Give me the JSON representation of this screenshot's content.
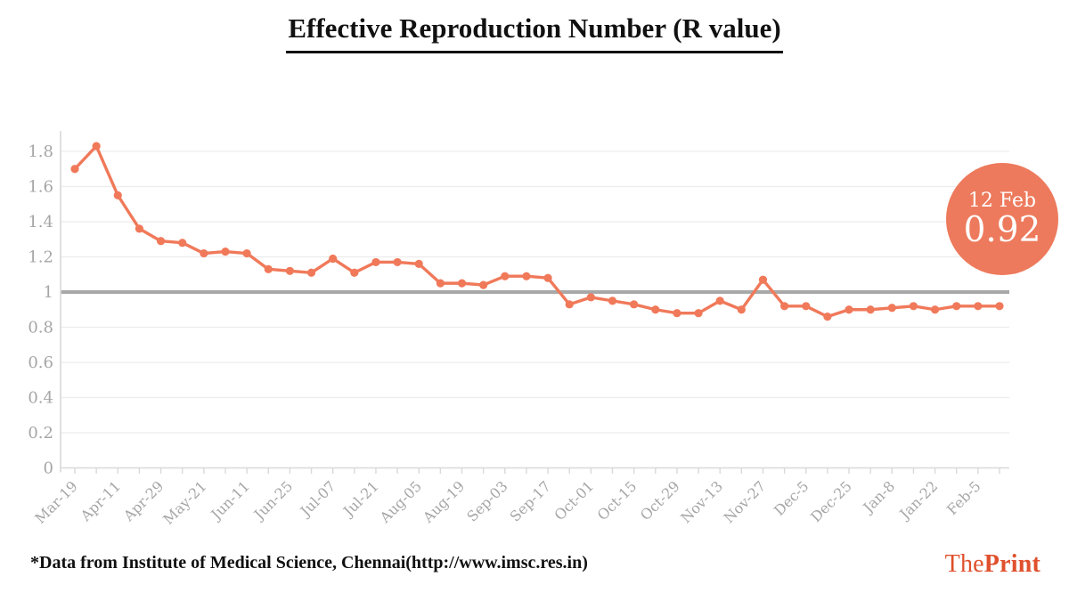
{
  "title": "Effective Reproduction Number (R value)",
  "source_note": "*Data from Institute of Medical Science, Chennai(http://www.imsc.res.in)",
  "brand": {
    "the": "The",
    "print": "Print"
  },
  "badge": {
    "date": "12 Feb",
    "value": "0.92"
  },
  "colors": {
    "line": "#f0795a",
    "badge_bg": "#ed7a5c",
    "badge_text": "#ffffff",
    "reference_line": "#a8a8a8",
    "grid": "#ececec",
    "axis": "#d9d9d9",
    "tick_label": "#a6a6a6",
    "brand": "#e0502c",
    "title_text": "#111111"
  },
  "chart_data": {
    "type": "line",
    "title": "Effective Reproduction Number (R value)",
    "series_name": "R value",
    "x_labels": [
      "Mar-19",
      "Apr-11",
      "Apr-29",
      "May-21",
      "Jun-11",
      "Jun-25",
      "Jul-07",
      "Jul-21",
      "Aug-05",
      "Aug-19",
      "Sep-03",
      "Sep-17",
      "Oct-01",
      "Oct-15",
      "Oct-29",
      "Nov-13",
      "Nov-27",
      "Dec-5",
      "Dec-25",
      "Jan-8",
      "Jan-22",
      "Feb-5"
    ],
    "label_every": 2,
    "values": [
      1.7,
      1.83,
      1.55,
      1.36,
      1.29,
      1.28,
      1.22,
      1.23,
      1.22,
      1.13,
      1.12,
      1.11,
      1.19,
      1.11,
      1.17,
      1.17,
      1.16,
      1.05,
      1.05,
      1.04,
      1.09,
      1.09,
      1.08,
      0.93,
      0.97,
      0.95,
      0.93,
      0.9,
      0.88,
      0.88,
      0.95,
      0.9,
      1.07,
      0.92,
      0.92,
      0.86,
      0.9,
      0.9,
      0.91,
      0.92,
      0.9,
      0.92,
      0.92,
      0.92
    ],
    "y_ticks": [
      0,
      0.2,
      0.4,
      0.6,
      0.8,
      1,
      1.2,
      1.4,
      1.6,
      1.8
    ],
    "y_tick_labels": [
      "0",
      "0.2",
      "0.4",
      "0.6",
      "0.8",
      "1",
      "1.2",
      "1.4",
      "1.6",
      "1.8"
    ],
    "ylim": [
      0,
      1.92
    ],
    "grid": true,
    "legend": "none",
    "reference_line": 1,
    "annotation": {
      "x_label": "12 Feb",
      "value": 0.92
    }
  }
}
